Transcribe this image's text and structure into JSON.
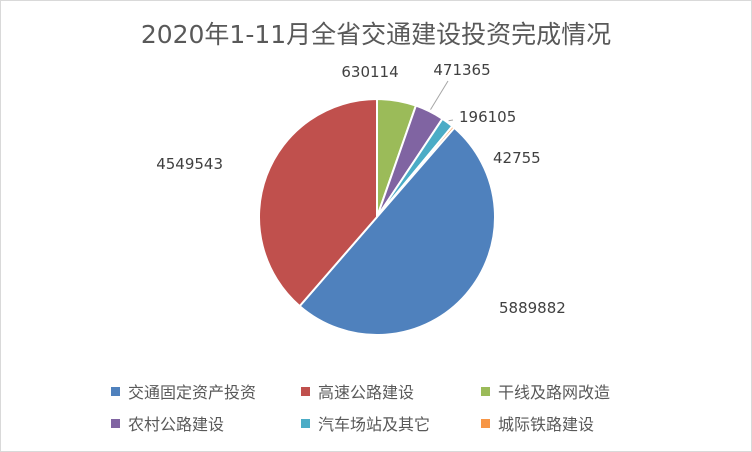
{
  "chart_data": {
    "type": "pie",
    "title": "2020年1-11月全省交通建设投资完成情况",
    "slices": [
      {
        "name": "交通固定资产投资",
        "value": 5889882,
        "color": "#4F81BD"
      },
      {
        "name": "高速公路建设",
        "value": 4549543,
        "color": "#C0504D"
      },
      {
        "name": "干线及路网改造",
        "value": 630114,
        "color": "#9BBB59"
      },
      {
        "name": "农村公路建设",
        "value": 471365,
        "color": "#8064A2"
      },
      {
        "name": "汽车场站及其它",
        "value": 196105,
        "color": "#4BACC6"
      },
      {
        "name": "城际铁路建设",
        "value": 42755,
        "color": "#F79646"
      }
    ],
    "legend_position": "bottom",
    "data_labels": true
  }
}
